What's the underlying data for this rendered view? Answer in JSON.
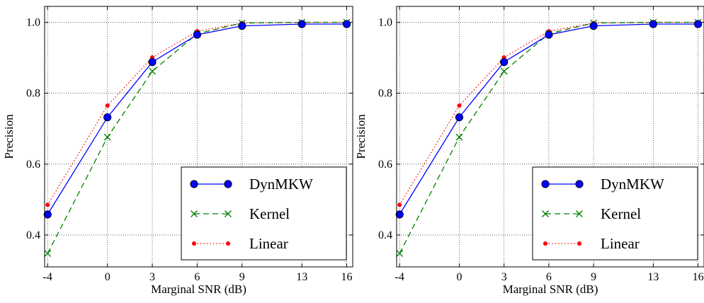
{
  "chart_data": [
    {
      "type": "line",
      "title": "",
      "xlabel": "Marginal SNR (dB)",
      "ylabel": "Precision",
      "x": [
        -4,
        0,
        3,
        6,
        9,
        13,
        16
      ],
      "x_tick_labels": [
        "-4",
        "0",
        "3",
        "6",
        "9",
        "13",
        "16"
      ],
      "y_ticks": [
        0.4,
        0.6,
        0.8,
        1.0
      ],
      "y_tick_labels": [
        "0.4",
        "0.6",
        "0.8",
        "1.0"
      ],
      "xlim": [
        -4.2,
        16.4
      ],
      "ylim": [
        0.31,
        1.045
      ],
      "grid": true,
      "legend_position": "lower-right",
      "series": [
        {
          "name": "DynMKW",
          "values": [
            0.458,
            0.732,
            0.888,
            0.965,
            0.99,
            0.995,
            0.995
          ],
          "color": "#0000ff",
          "line": "solid",
          "marker": "circle"
        },
        {
          "name": "Kernel",
          "values": [
            0.348,
            0.676,
            0.862,
            0.968,
            0.998,
            1.0,
            1.0
          ],
          "color": "#008000",
          "line": "dashed",
          "marker": "x"
        },
        {
          "name": "Linear",
          "values": [
            0.485,
            0.765,
            0.901,
            0.975,
            0.998,
            1.0,
            1.0
          ],
          "color": "#ff0000",
          "line": "dotted",
          "marker": "dot"
        }
      ]
    },
    {
      "type": "line",
      "title": "",
      "xlabel": "Marginal SNR (dB)",
      "ylabel": "Precision",
      "x": [
        -4,
        0,
        3,
        6,
        9,
        13,
        16
      ],
      "x_tick_labels": [
        "-4",
        "0",
        "3",
        "6",
        "9",
        "13",
        "16"
      ],
      "y_ticks": [
        0.4,
        0.6,
        0.8,
        1.0
      ],
      "y_tick_labels": [
        "0.4",
        "0.6",
        "0.8",
        "1.0"
      ],
      "xlim": [
        -4.2,
        16.4
      ],
      "ylim": [
        0.31,
        1.045
      ],
      "grid": true,
      "legend_position": "lower-right",
      "series": [
        {
          "name": "DynMKW",
          "values": [
            0.458,
            0.732,
            0.888,
            0.965,
            0.99,
            0.995,
            0.995
          ],
          "color": "#0000ff",
          "line": "solid",
          "marker": "circle"
        },
        {
          "name": "Kernel",
          "values": [
            0.348,
            0.676,
            0.862,
            0.968,
            0.998,
            1.0,
            1.0
          ],
          "color": "#008000",
          "line": "dashed",
          "marker": "x"
        },
        {
          "name": "Linear",
          "values": [
            0.485,
            0.765,
            0.901,
            0.975,
            0.998,
            1.0,
            1.0
          ],
          "color": "#ff0000",
          "line": "dotted",
          "marker": "dot"
        }
      ]
    }
  ]
}
